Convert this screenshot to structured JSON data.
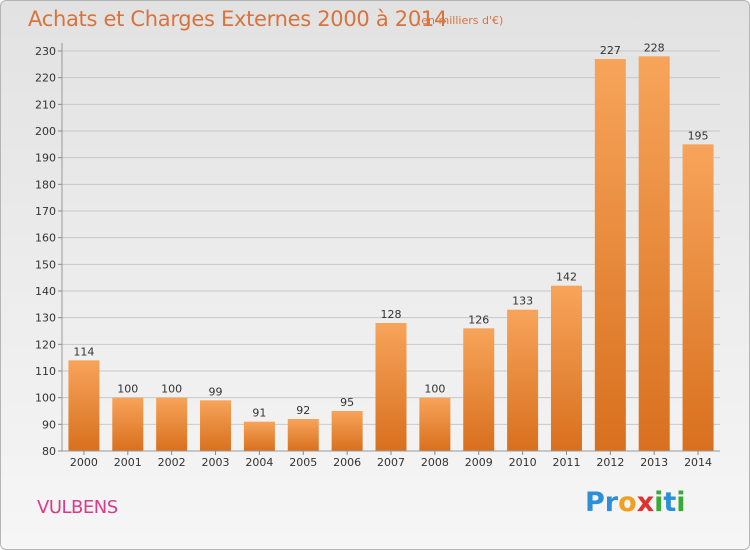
{
  "title": "Achats et Charges Externes 2000 à 2014",
  "subtitle": "(en milliers d'€)",
  "place": "VULBENS",
  "logo": {
    "text": "Proxiti",
    "letters": [
      {
        "ch": "P",
        "color": "#2d8fd8"
      },
      {
        "ch": "r",
        "color": "#2d8fd8"
      },
      {
        "ch": "o",
        "color": "#f0a020"
      },
      {
        "ch": "x",
        "color": "#e03030"
      },
      {
        "ch": "i",
        "color": "#3aa83a"
      },
      {
        "ch": "t",
        "color": "#2d8fd8"
      },
      {
        "ch": "i",
        "color": "#3aa83a"
      }
    ]
  },
  "colors": {
    "bar_light": "#f7a45a",
    "bar_dark": "#d8701e",
    "title": "#d8733c",
    "grid": "#c8c8c8"
  },
  "chart_data": {
    "type": "bar",
    "categories": [
      "2000",
      "2001",
      "2002",
      "2003",
      "2004",
      "2005",
      "2006",
      "2007",
      "2008",
      "2009",
      "2010",
      "2011",
      "2012",
      "2013",
      "2014"
    ],
    "values": [
      114,
      100,
      100,
      99,
      91,
      92,
      95,
      128,
      100,
      126,
      133,
      142,
      227,
      228,
      195
    ],
    "ylim": [
      80,
      230
    ],
    "yticks": [
      80,
      90,
      100,
      110,
      120,
      130,
      140,
      150,
      160,
      170,
      180,
      190,
      200,
      210,
      220,
      230
    ],
    "grid": true
  }
}
